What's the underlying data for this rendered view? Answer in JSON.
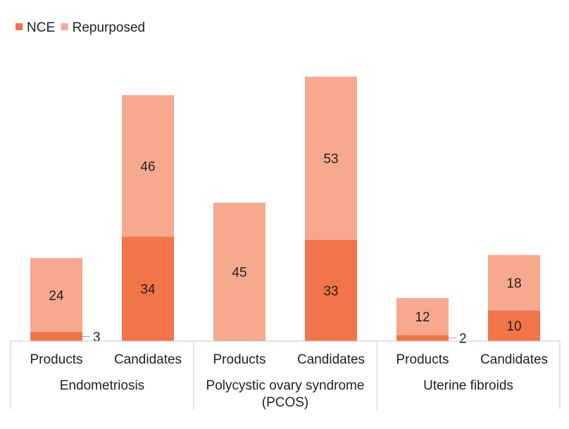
{
  "colors": {
    "nce": "#f27449",
    "repurposed": "#f6a98f",
    "text": "#1f1f1f",
    "axis": "#c9c9c9"
  },
  "chart_data": {
    "type": "bar",
    "stacked": true,
    "categories": [
      {
        "group": "Endometriosis",
        "label": "Products"
      },
      {
        "group": "Endometriosis",
        "label": "Candidates"
      },
      {
        "group": "Polycystic ovary syndrome (PCOS)",
        "label": "Products"
      },
      {
        "group": "Polycystic ovary syndrome (PCOS)",
        "label": "Candidates"
      },
      {
        "group": "Uterine fibroids",
        "label": "Products"
      },
      {
        "group": "Uterine fibroids",
        "label": "Candidates"
      }
    ],
    "groups": [
      {
        "name": "Endometriosis",
        "lines": [
          "Endometriosis"
        ]
      },
      {
        "name": "Polycystic ovary syndrome (PCOS)",
        "lines": [
          "Polycystic ovary syndrome",
          "(PCOS)"
        ]
      },
      {
        "name": "Uterine fibroids",
        "lines": [
          "Uterine fibroids"
        ]
      }
    ],
    "series": [
      {
        "name": "NCE",
        "color": "#f27449",
        "values": [
          3,
          34,
          0,
          33,
          2,
          10
        ],
        "labels": [
          "3",
          "34",
          "",
          "33",
          "2",
          "10"
        ]
      },
      {
        "name": "Repurposed",
        "color": "#f6a98f",
        "values": [
          24,
          46,
          45,
          53,
          12,
          18
        ],
        "labels": [
          "24",
          "46",
          "45",
          "53",
          "12",
          "18"
        ]
      }
    ],
    "legend": "top-left",
    "grid": false,
    "ylim": [
      0,
      86
    ]
  }
}
